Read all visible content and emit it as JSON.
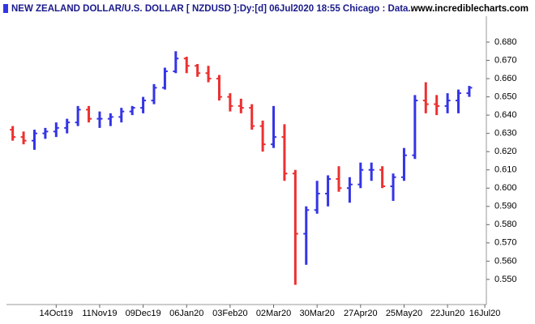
{
  "chart_data": {
    "type": "ohlc",
    "title": "NEW ZEALAND DOLLAR/U.S. DOLLAR [ NZDUSD ]:Dy:[d]  06Jul2020 18:55 Chicago : Data..",
    "source": "www.incrediblecharts.com",
    "up_color": "#3434e6",
    "down_color": "#ec3030",
    "x": [
      "2019-09-16",
      "2019-09-23",
      "2019-09-30",
      "2019-10-07",
      "2019-10-14",
      "2019-10-21",
      "2019-10-28",
      "2019-11-04",
      "2019-11-11",
      "2019-11-18",
      "2019-11-25",
      "2019-12-02",
      "2019-12-09",
      "2019-12-16",
      "2019-12-23",
      "2019-12-30",
      "2020-01-06",
      "2020-01-13",
      "2020-01-20",
      "2020-01-27",
      "2020-02-03",
      "2020-02-10",
      "2020-02-17",
      "2020-02-24",
      "2020-03-02",
      "2020-03-09",
      "2020-03-16",
      "2020-03-23",
      "2020-03-30",
      "2020-04-06",
      "2020-04-13",
      "2020-04-20",
      "2020-04-27",
      "2020-05-04",
      "2020-05-11",
      "2020-05-18",
      "2020-05-25",
      "2020-06-01",
      "2020-06-08",
      "2020-06-15",
      "2020-06-22",
      "2020-06-29",
      "2020-07-06"
    ],
    "open": [
      0.632,
      0.628,
      0.626,
      0.63,
      0.631,
      0.633,
      0.636,
      0.643,
      0.638,
      0.638,
      0.639,
      0.642,
      0.644,
      0.648,
      0.655,
      0.664,
      0.671,
      0.667,
      0.663,
      0.66,
      0.65,
      0.645,
      0.644,
      0.634,
      0.624,
      0.628,
      0.608,
      0.575,
      0.588,
      0.597,
      0.605,
      0.6,
      0.602,
      0.61,
      0.61,
      0.601,
      0.606,
      0.618,
      0.648,
      0.646,
      0.645,
      0.648,
      0.652
    ],
    "high": [
      0.634,
      0.631,
      0.632,
      0.633,
      0.636,
      0.638,
      0.645,
      0.645,
      0.642,
      0.641,
      0.644,
      0.645,
      0.65,
      0.657,
      0.666,
      0.675,
      0.672,
      0.668,
      0.667,
      0.662,
      0.652,
      0.649,
      0.646,
      0.637,
      0.645,
      0.635,
      0.61,
      0.59,
      0.604,
      0.607,
      0.612,
      0.606,
      0.614,
      0.614,
      0.612,
      0.608,
      0.622,
      0.651,
      0.658,
      0.651,
      0.652,
      0.654,
      0.656
    ],
    "low": [
      0.626,
      0.624,
      0.621,
      0.627,
      0.628,
      0.63,
      0.634,
      0.636,
      0.633,
      0.634,
      0.636,
      0.64,
      0.641,
      0.646,
      0.654,
      0.663,
      0.663,
      0.661,
      0.658,
      0.648,
      0.642,
      0.641,
      0.632,
      0.62,
      0.622,
      0.604,
      0.547,
      0.558,
      0.586,
      0.59,
      0.598,
      0.592,
      0.6,
      0.604,
      0.6,
      0.593,
      0.604,
      0.616,
      0.641,
      0.64,
      0.641,
      0.641,
      0.65
    ],
    "close": [
      0.628,
      0.626,
      0.63,
      0.631,
      0.633,
      0.636,
      0.643,
      0.638,
      0.638,
      0.639,
      0.642,
      0.644,
      0.648,
      0.655,
      0.664,
      0.671,
      0.667,
      0.663,
      0.66,
      0.65,
      0.645,
      0.644,
      0.634,
      0.624,
      0.628,
      0.608,
      0.575,
      0.588,
      0.597,
      0.605,
      0.6,
      0.602,
      0.61,
      0.61,
      0.601,
      0.606,
      0.618,
      0.648,
      0.646,
      0.645,
      0.648,
      0.652,
      0.655
    ],
    "xlim": [
      "2019-09-12",
      "2020-07-17"
    ],
    "xticks": [
      {
        "value": "2019-10-14",
        "label": "14Oct19"
      },
      {
        "value": "2019-11-11",
        "label": "11Nov19"
      },
      {
        "value": "2019-12-09",
        "label": "09Dec19"
      },
      {
        "value": "2020-01-06",
        "label": "06Jan20"
      },
      {
        "value": "2020-02-03",
        "label": "03Feb20"
      },
      {
        "value": "2020-03-02",
        "label": "02Mar20"
      },
      {
        "value": "2020-03-30",
        "label": "30Mar20"
      },
      {
        "value": "2020-04-27",
        "label": "27Apr20"
      },
      {
        "value": "2020-05-25",
        "label": "25May20"
      },
      {
        "value": "2020-06-22",
        "label": "22Jun20"
      },
      {
        "value": "2020-07-16",
        "label": "16Jul20"
      }
    ],
    "ylim": [
      0.5362,
      0.6942
    ],
    "yticks": [
      {
        "value": 0.55,
        "label": "0.550"
      },
      {
        "value": 0.56,
        "label": "0.560"
      },
      {
        "value": 0.57,
        "label": "0.570"
      },
      {
        "value": 0.58,
        "label": "0.580"
      },
      {
        "value": 0.59,
        "label": "0.590"
      },
      {
        "value": 0.6,
        "label": "0.600"
      },
      {
        "value": 0.61,
        "label": "0.610"
      },
      {
        "value": 0.62,
        "label": "0.620"
      },
      {
        "value": 0.63,
        "label": "0.630"
      },
      {
        "value": 0.64,
        "label": "0.640"
      },
      {
        "value": 0.65,
        "label": "0.650"
      },
      {
        "value": 0.66,
        "label": "0.660"
      },
      {
        "value": 0.67,
        "label": "0.670"
      },
      {
        "value": 0.68,
        "label": "0.680"
      }
    ]
  }
}
